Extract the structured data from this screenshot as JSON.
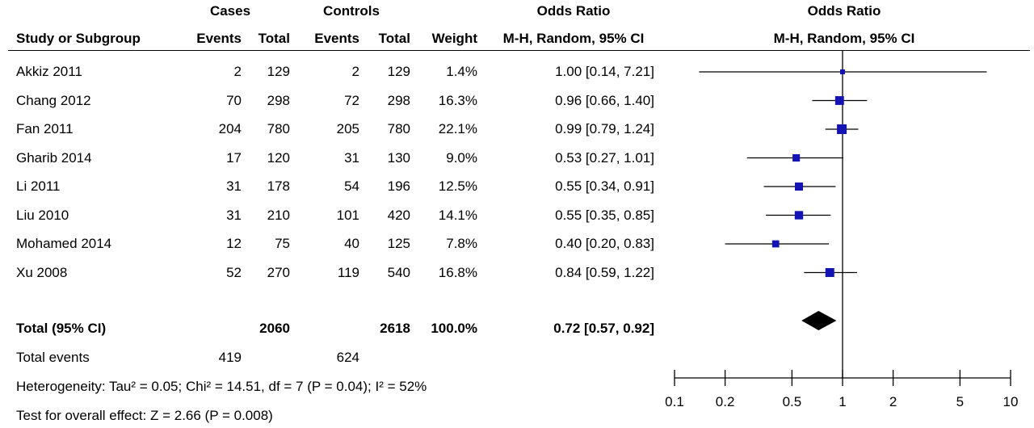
{
  "headers": {
    "cases": "Cases",
    "controls": "Controls",
    "or_left": "Odds Ratio",
    "or_right": "Odds Ratio",
    "study": "Study or Subgroup",
    "events1": "Events",
    "total1": "Total",
    "events2": "Events",
    "total2": "Total",
    "weight": "Weight",
    "method_left": "M-H, Random, 95% CI",
    "method_right": "M-H, Random, 95% CI"
  },
  "studies": [
    {
      "name": "Akkiz 2011",
      "ev1": "2",
      "tot1": "129",
      "ev2": "2",
      "tot2": "129",
      "weight": "1.4%",
      "ci": "1.00 [0.14, 7.21]"
    },
    {
      "name": "Chang 2012",
      "ev1": "70",
      "tot1": "298",
      "ev2": "72",
      "tot2": "298",
      "weight": "16.3%",
      "ci": "0.96 [0.66, 1.40]"
    },
    {
      "name": "Fan 2011",
      "ev1": "204",
      "tot1": "780",
      "ev2": "205",
      "tot2": "780",
      "weight": "22.1%",
      "ci": "0.99 [0.79, 1.24]"
    },
    {
      "name": "Gharib 2014",
      "ev1": "17",
      "tot1": "120",
      "ev2": "31",
      "tot2": "130",
      "weight": "9.0%",
      "ci": "0.53 [0.27, 1.01]"
    },
    {
      "name": "Li 2011",
      "ev1": "31",
      "tot1": "178",
      "ev2": "54",
      "tot2": "196",
      "weight": "12.5%",
      "ci": "0.55 [0.34, 0.91]"
    },
    {
      "name": "Liu 2010",
      "ev1": "31",
      "tot1": "210",
      "ev2": "101",
      "tot2": "420",
      "weight": "14.1%",
      "ci": "0.55 [0.35, 0.85]"
    },
    {
      "name": "Mohamed 2014",
      "ev1": "12",
      "tot1": "75",
      "ev2": "40",
      "tot2": "125",
      "weight": "7.8%",
      "ci": "0.40 [0.20, 0.83]"
    },
    {
      "name": "Xu 2008",
      "ev1": "52",
      "tot1": "270",
      "ev2": "119",
      "tot2": "540",
      "weight": "16.8%",
      "ci": "0.84 [0.59, 1.22]"
    }
  ],
  "total": {
    "label": "Total (95% CI)",
    "tot1": "2060",
    "tot2": "2618",
    "weight": "100.0%",
    "ci": "0.72 [0.57, 0.92]"
  },
  "total_events": {
    "label": "Total events",
    "ev1": "419",
    "ev2": "624"
  },
  "heterogeneity": "Heterogeneity: Tau² = 0.05; Chi² = 14.51, df = 7 (P = 0.04); I² = 52%",
  "overall_effect": "Test for overall effect: Z = 2.66 (P = 0.008)",
  "colors": {
    "marker": "#1414b4",
    "diamond": "#000000"
  },
  "chart_data": {
    "type": "forest",
    "scale": "log",
    "xlim": [
      0.1,
      10
    ],
    "ticks": [
      {
        "value": 0.1,
        "label": "0.1"
      },
      {
        "value": 0.2,
        "label": "0.2"
      },
      {
        "value": 0.5,
        "label": "0.5"
      },
      {
        "value": 1,
        "label": "1"
      },
      {
        "value": 2,
        "label": "2"
      },
      {
        "value": 5,
        "label": "5"
      },
      {
        "value": 10,
        "label": "10"
      }
    ],
    "null_line": 1,
    "points": [
      {
        "or": 1.0,
        "lo": 0.14,
        "hi": 7.21,
        "weight": 1.4
      },
      {
        "or": 0.96,
        "lo": 0.66,
        "hi": 1.4,
        "weight": 16.3
      },
      {
        "or": 0.99,
        "lo": 0.79,
        "hi": 1.24,
        "weight": 22.1
      },
      {
        "or": 0.53,
        "lo": 0.27,
        "hi": 1.01,
        "weight": 9.0
      },
      {
        "or": 0.55,
        "lo": 0.34,
        "hi": 0.91,
        "weight": 12.5
      },
      {
        "or": 0.55,
        "lo": 0.35,
        "hi": 0.85,
        "weight": 14.1
      },
      {
        "or": 0.4,
        "lo": 0.2,
        "hi": 0.83,
        "weight": 7.8
      },
      {
        "or": 0.84,
        "lo": 0.59,
        "hi": 1.22,
        "weight": 16.8
      }
    ],
    "pooled": {
      "or": 0.72,
      "lo": 0.57,
      "hi": 0.92
    }
  }
}
